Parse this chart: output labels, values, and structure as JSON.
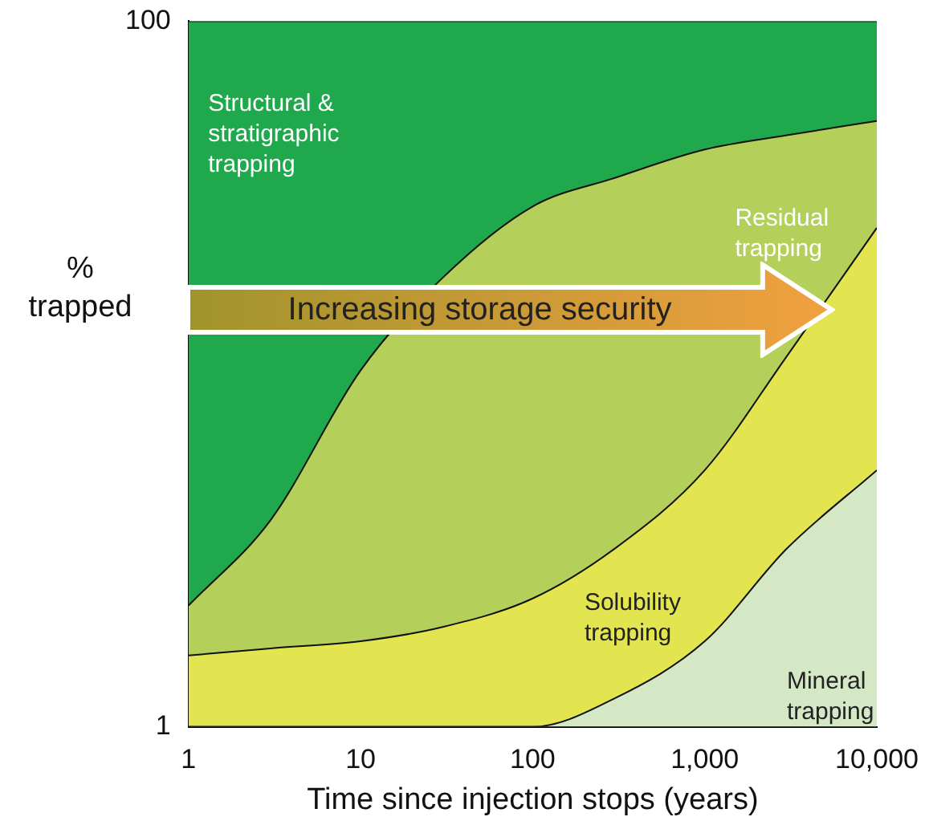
{
  "chart_data": {
    "type": "area",
    "stacked": true,
    "xlabel": "Time since injection stops (years)",
    "ylabel": "% trapped",
    "log": "x",
    "x": [
      1,
      3,
      10,
      30,
      100,
      300,
      1000,
      3000,
      10000
    ],
    "series": [
      {
        "name": "Mineral trapping",
        "color": "#d4e8c6",
        "values": [
          1,
          1,
          1,
          1,
          1,
          5,
          13,
          26,
          37
        ]
      },
      {
        "name": "Solubility trapping",
        "color": "#e2e550",
        "values": [
          10,
          11,
          12,
          14,
          18,
          21,
          24,
          27,
          34
        ]
      },
      {
        "name": "Residual trapping",
        "color": "#b4cf5a",
        "values": [
          7,
          18,
          38,
          49,
          55,
          52,
          45,
          31,
          15
        ]
      },
      {
        "name": "Structural & stratigraphic trapping",
        "color": "#1fa84c",
        "values": [
          82,
          70,
          49,
          36,
          26,
          22,
          18,
          16,
          14
        ]
      }
    ],
    "xlim": [
      1,
      10000
    ],
    "xticks": [
      1,
      10,
      100,
      {
        "value": 1000,
        "label": "1,000"
      },
      {
        "value": 10000,
        "label": "10,000"
      }
    ],
    "ylim": [
      1,
      100
    ],
    "yticks": [
      1,
      100
    ],
    "grid": false,
    "legend": false,
    "annotations": [
      "Increasing storage security"
    ]
  }
}
